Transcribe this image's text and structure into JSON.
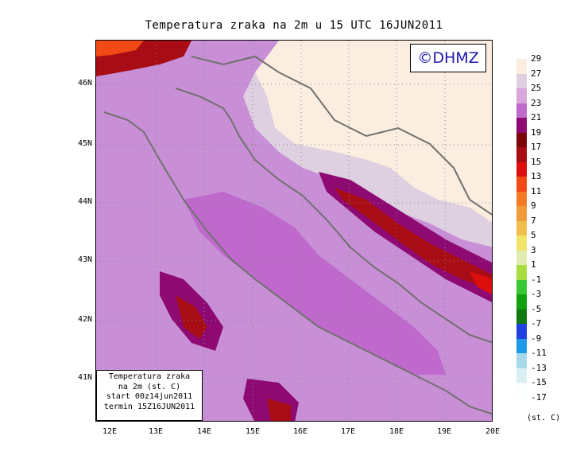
{
  "title": "Temperatura zraka na 2m u 15 UTC 16JUN2011",
  "watermark": "©DHMZ",
  "info_box": [
    "Temperatura zraka",
    "na 2m (st. C)",
    "start 00z14jun2011",
    "termin 15Z16JUN2011"
  ],
  "lat_labels": [
    "46N",
    "45N",
    "44N",
    "43N",
    "42N",
    "41N"
  ],
  "lon_labels": [
    "12E",
    "13E",
    "14E",
    "15E",
    "16E",
    "17E",
    "18E",
    "19E",
    "20E"
  ],
  "legend": {
    "labels": [
      "29",
      "27",
      "25",
      "23",
      "21",
      "19",
      "17",
      "15",
      "13",
      "11",
      "9",
      "7",
      "5",
      "3",
      "1",
      "-1",
      "-3",
      "-5",
      "-7",
      "-9",
      "-11",
      "-13",
      "-15",
      "-17"
    ],
    "colors": [
      "#fbeee0",
      "#ded0e0",
      "#d9a7dc",
      "#bf69cc",
      "#8e0a72",
      "#7a0608",
      "#a80c14",
      "#dd0e0e",
      "#f24a16",
      "#f57a26",
      "#f09a3c",
      "#efbe4c",
      "#f2e46a",
      "#e0ecb0",
      "#a8dc40",
      "#38c838",
      "#10a010",
      "#107a10",
      "#2040e0",
      "#1c9ae8",
      "#a8d8e8",
      "#d8f0f4",
      "#fafefe"
    ],
    "unit": "(st. C)"
  }
}
